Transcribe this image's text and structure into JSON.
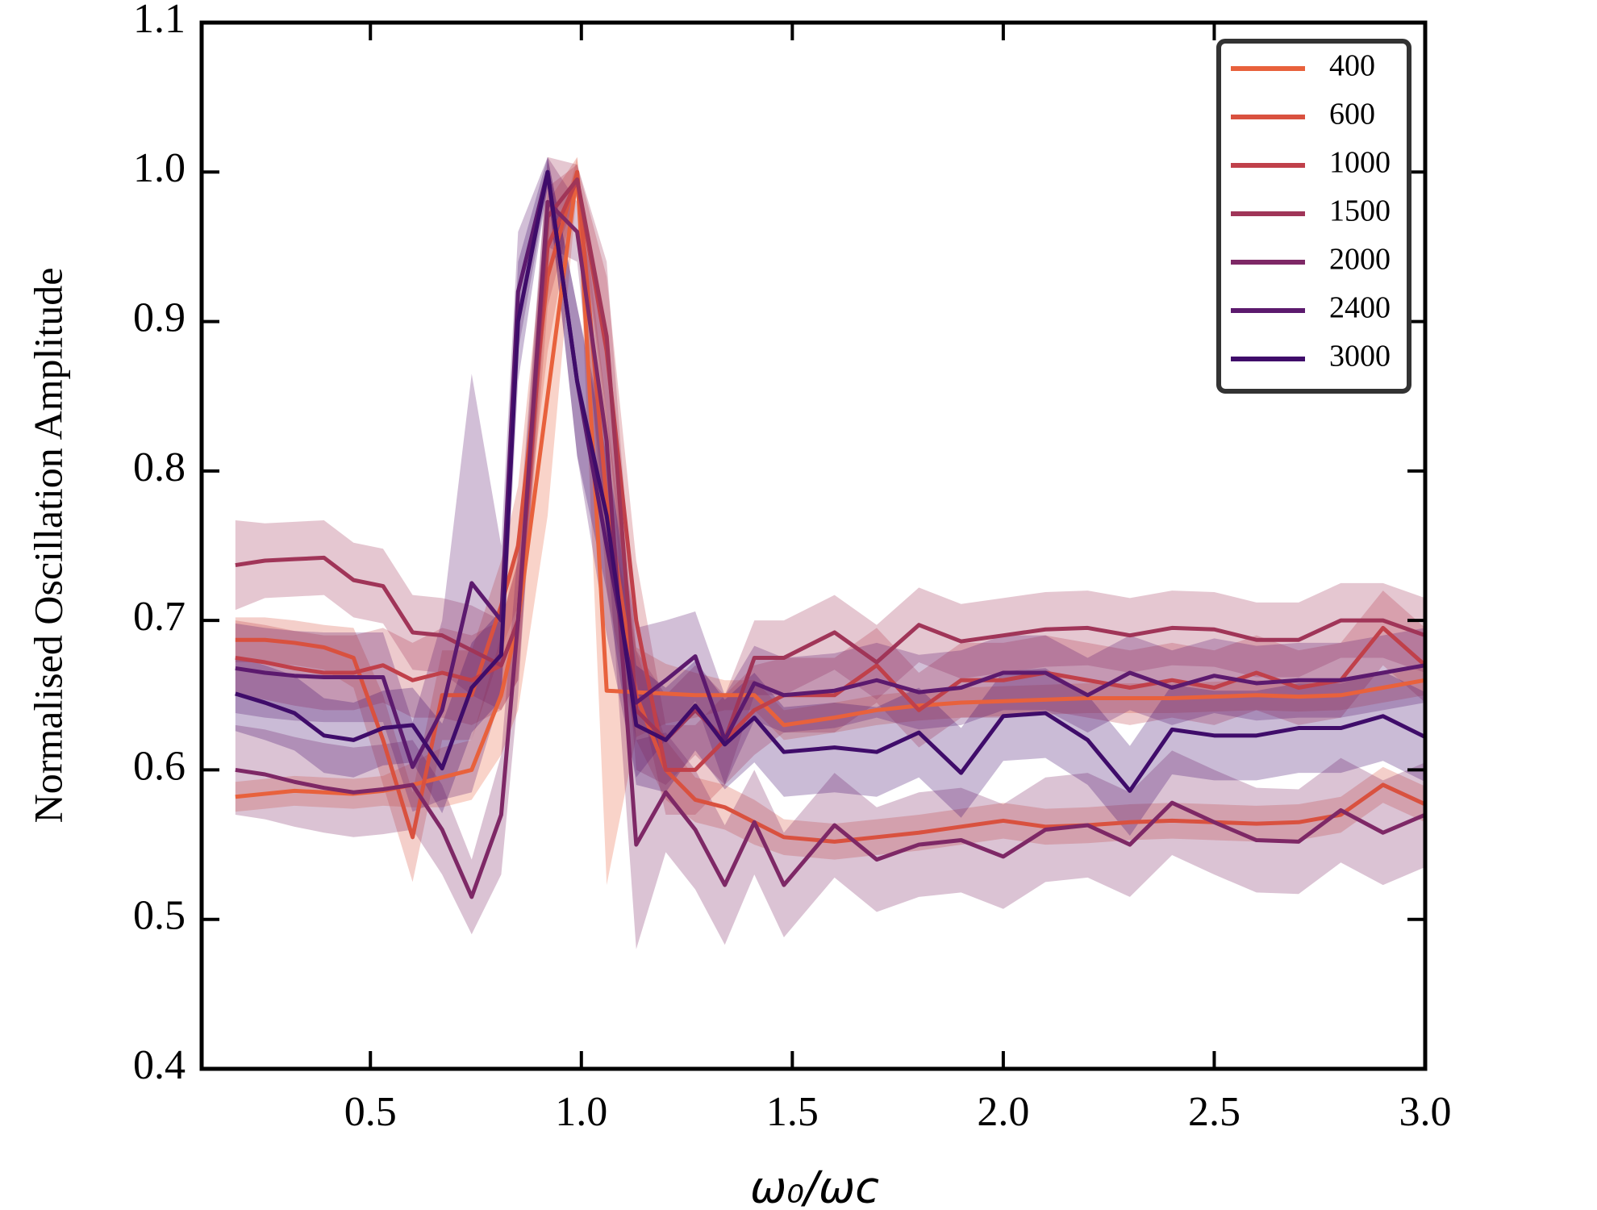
{
  "chart_data": {
    "type": "line",
    "x_label": "ω₀/ωc",
    "y_label": "Normalised Oscillation Amplitude",
    "x": [
      0.18,
      0.25,
      0.32,
      0.39,
      0.46,
      0.53,
      0.6,
      0.67,
      0.74,
      0.81,
      0.85,
      0.92,
      0.99,
      1.06,
      1.13,
      1.2,
      1.27,
      1.34,
      1.41,
      1.48,
      1.6,
      1.7,
      1.8,
      1.9,
      2.0,
      2.1,
      2.2,
      2.3,
      2.4,
      2.5,
      2.6,
      2.7,
      2.8,
      2.9,
      3.0
    ],
    "xlim": [
      0.1,
      3.0
    ],
    "xticks": [
      0.5,
      {
        "value": 1,
        "label": "1.0"
      },
      1.5,
      {
        "value": 2,
        "label": "2.0"
      },
      2.5,
      {
        "value": 3,
        "label": "3.0"
      }
    ],
    "ylim": [
      0.4,
      1.1
    ],
    "yticks": [
      0.4,
      0.5,
      0.6,
      0.7,
      0.8,
      0.9,
      {
        "value": 1,
        "label": "1.0"
      },
      1.1
    ],
    "legend": "upper right",
    "series": [
      {
        "name": "400",
        "color": "#e8613c",
        "values": [
          0.582,
          0.584,
          0.586,
          0.585,
          0.584,
          0.586,
          0.59,
          0.595,
          0.6,
          0.65,
          0.7,
          0.85,
          1.0,
          0.653,
          0.652,
          0.651,
          0.65,
          0.65,
          0.65,
          0.63,
          0.635,
          0.64,
          0.643,
          0.645,
          0.646,
          0.647,
          0.648,
          0.648,
          0.648,
          0.649,
          0.65,
          0.649,
          0.65,
          0.655,
          0.66
        ],
        "errors": [
          0.01,
          0.01,
          0.01,
          0.01,
          0.01,
          0.01,
          0.015,
          0.02,
          0.02,
          0.04,
          0.06,
          0.08,
          0.01,
          0.13,
          0.03,
          0.02,
          0.015,
          0.01,
          0.01,
          0.01,
          0.01,
          0.01,
          0.01,
          0.01,
          0.01,
          0.01,
          0.01,
          0.01,
          0.01,
          0.01,
          0.01,
          0.01,
          0.01,
          0.01,
          0.01
        ]
      },
      {
        "name": "600",
        "color": "#d9513f",
        "values": [
          0.687,
          0.687,
          0.685,
          0.682,
          0.675,
          0.62,
          0.555,
          0.65,
          0.65,
          0.71,
          0.75,
          0.93,
          1.0,
          0.78,
          0.65,
          0.6,
          0.58,
          0.575,
          0.565,
          0.555,
          0.552,
          0.555,
          0.558,
          0.562,
          0.566,
          0.562,
          0.563,
          0.565,
          0.566,
          0.565,
          0.564,
          0.565,
          0.57,
          0.59,
          0.577
        ],
        "errors": [
          0.015,
          0.015,
          0.015,
          0.015,
          0.02,
          0.03,
          0.03,
          0.03,
          0.03,
          0.03,
          0.04,
          0.05,
          0.01,
          0.06,
          0.03,
          0.02,
          0.015,
          0.015,
          0.015,
          0.012,
          0.012,
          0.012,
          0.012,
          0.012,
          0.012,
          0.012,
          0.012,
          0.012,
          0.012,
          0.012,
          0.012,
          0.012,
          0.012,
          0.012,
          0.012
        ]
      },
      {
        "name": "1000",
        "color": "#c0404a",
        "values": [
          0.675,
          0.672,
          0.668,
          0.665,
          0.665,
          0.67,
          0.66,
          0.665,
          0.66,
          0.67,
          0.7,
          0.95,
          0.995,
          0.88,
          0.7,
          0.6,
          0.6,
          0.62,
          0.64,
          0.65,
          0.65,
          0.67,
          0.64,
          0.66,
          0.66,
          0.665,
          0.66,
          0.655,
          0.66,
          0.655,
          0.665,
          0.655,
          0.66,
          0.695,
          0.67
        ],
        "errors": [
          0.025,
          0.025,
          0.025,
          0.025,
          0.025,
          0.025,
          0.025,
          0.03,
          0.03,
          0.03,
          0.04,
          0.04,
          0.01,
          0.05,
          0.04,
          0.03,
          0.03,
          0.03,
          0.03,
          0.025,
          0.025,
          0.025,
          0.025,
          0.025,
          0.025,
          0.025,
          0.025,
          0.025,
          0.025,
          0.025,
          0.025,
          0.025,
          0.025,
          0.025,
          0.025
        ]
      },
      {
        "name": "1500",
        "color": "#a03558",
        "values": [
          0.737,
          0.74,
          0.741,
          0.742,
          0.727,
          0.723,
          0.692,
          0.69,
          0.68,
          0.67,
          0.7,
          0.97,
          0.995,
          0.89,
          0.64,
          0.62,
          0.64,
          0.62,
          0.675,
          0.675,
          0.692,
          0.672,
          0.697,
          0.686,
          0.69,
          0.694,
          0.695,
          0.69,
          0.695,
          0.694,
          0.687,
          0.687,
          0.7,
          0.7,
          0.69
        ],
        "errors": [
          0.03,
          0.025,
          0.025,
          0.025,
          0.025,
          0.025,
          0.025,
          0.025,
          0.03,
          0.03,
          0.04,
          0.04,
          0.01,
          0.05,
          0.04,
          0.03,
          0.03,
          0.03,
          0.025,
          0.025,
          0.025,
          0.025,
          0.025,
          0.025,
          0.025,
          0.025,
          0.025,
          0.025,
          0.025,
          0.025,
          0.025,
          0.025,
          0.025,
          0.025,
          0.025
        ]
      },
      {
        "name": "2000",
        "color": "#7e2866",
        "values": [
          0.6,
          0.597,
          0.592,
          0.588,
          0.585,
          0.587,
          0.59,
          0.56,
          0.515,
          0.57,
          0.7,
          0.98,
          0.96,
          0.82,
          0.55,
          0.585,
          0.56,
          0.523,
          0.565,
          0.523,
          0.563,
          0.54,
          0.55,
          0.553,
          0.542,
          0.56,
          0.563,
          0.55,
          0.578,
          0.565,
          0.553,
          0.552,
          0.573,
          0.558,
          0.57
        ],
        "errors": [
          0.03,
          0.03,
          0.03,
          0.03,
          0.03,
          0.03,
          0.03,
          0.03,
          0.025,
          0.04,
          0.05,
          0.03,
          0.02,
          0.06,
          0.07,
          0.04,
          0.04,
          0.04,
          0.035,
          0.035,
          0.035,
          0.035,
          0.035,
          0.035,
          0.035,
          0.035,
          0.035,
          0.035,
          0.035,
          0.035,
          0.035,
          0.035,
          0.035,
          0.035,
          0.035
        ]
      },
      {
        "name": "2400",
        "color": "#5c1a6e",
        "values": [
          0.668,
          0.665,
          0.663,
          0.662,
          0.662,
          0.662,
          0.602,
          0.64,
          0.725,
          0.7,
          0.92,
          1.0,
          0.86,
          0.75,
          0.645,
          0.66,
          0.676,
          0.62,
          0.658,
          0.65,
          0.653,
          0.66,
          0.652,
          0.655,
          0.665,
          0.665,
          0.65,
          0.665,
          0.655,
          0.663,
          0.658,
          0.66,
          0.66,
          0.665,
          0.67
        ],
        "errors": [
          0.03,
          0.03,
          0.03,
          0.03,
          0.03,
          0.03,
          0.03,
          0.06,
          0.14,
          0.05,
          0.04,
          0.01,
          0.05,
          0.06,
          0.05,
          0.04,
          0.03,
          0.03,
          0.025,
          0.025,
          0.025,
          0.025,
          0.025,
          0.025,
          0.025,
          0.025,
          0.025,
          0.025,
          0.025,
          0.025,
          0.025,
          0.025,
          0.025,
          0.025,
          0.025
        ]
      },
      {
        "name": "3000",
        "color": "#3f0c6a",
        "values": [
          0.651,
          0.645,
          0.638,
          0.623,
          0.62,
          0.628,
          0.63,
          0.601,
          0.655,
          0.677,
          0.9,
          1.0,
          0.86,
          0.77,
          0.63,
          0.62,
          0.643,
          0.617,
          0.635,
          0.612,
          0.615,
          0.612,
          0.625,
          0.598,
          0.636,
          0.638,
          0.62,
          0.586,
          0.627,
          0.623,
          0.623,
          0.628,
          0.628,
          0.636,
          0.622
        ],
        "errors": [
          0.025,
          0.025,
          0.025,
          0.025,
          0.025,
          0.025,
          0.025,
          0.03,
          0.03,
          0.03,
          0.04,
          0.01,
          0.05,
          0.05,
          0.04,
          0.035,
          0.03,
          0.03,
          0.03,
          0.03,
          0.03,
          0.03,
          0.03,
          0.03,
          0.03,
          0.03,
          0.03,
          0.03,
          0.03,
          0.03,
          0.03,
          0.03,
          0.03,
          0.03,
          0.03
        ]
      }
    ]
  }
}
